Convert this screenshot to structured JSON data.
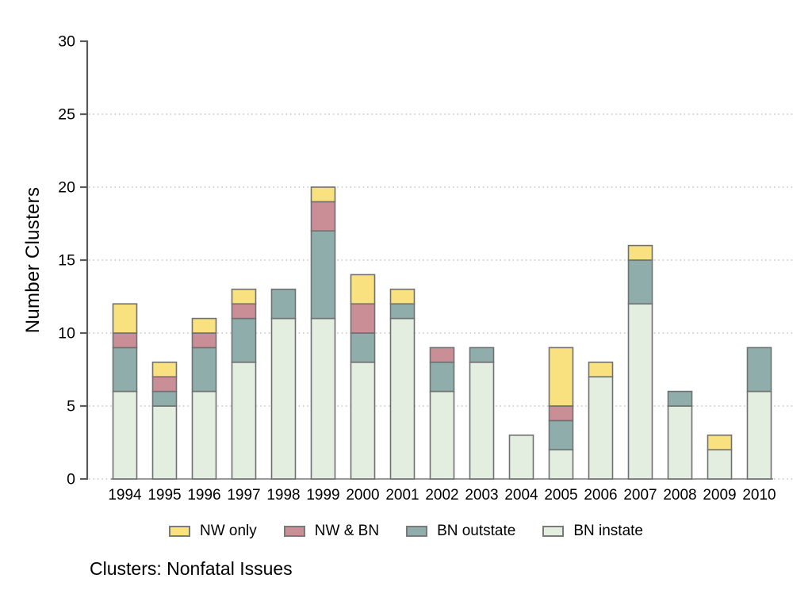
{
  "chart_data": {
    "type": "bar",
    "stacked": true,
    "title": "Clusters: Nonfatal Issues",
    "ylabel": "Number Clusters",
    "xlabel": "",
    "categories": [
      "1994",
      "1995",
      "1996",
      "1997",
      "1998",
      "1999",
      "2000",
      "2001",
      "2002",
      "2003",
      "2004",
      "2005",
      "2006",
      "2007",
      "2008",
      "2009",
      "2010"
    ],
    "series": [
      {
        "name": "NW only",
        "color": "#F8E17E",
        "values": [
          2,
          1,
          1,
          1,
          0,
          1,
          2,
          1,
          0,
          0,
          0,
          4,
          1,
          1,
          0,
          1,
          0
        ]
      },
      {
        "name": "NW & BN",
        "color": "#CA8E96",
        "values": [
          1,
          1,
          1,
          1,
          0,
          2,
          2,
          0,
          1,
          0,
          0,
          1,
          0,
          0,
          0,
          0,
          0
        ]
      },
      {
        "name": "BN outstate",
        "color": "#8FAEAB",
        "values": [
          3,
          1,
          3,
          3,
          2,
          6,
          2,
          1,
          2,
          1,
          0,
          2,
          0,
          3,
          1,
          0,
          3
        ]
      },
      {
        "name": "BN instate",
        "color": "#E3EEE1",
        "values": [
          6,
          5,
          6,
          8,
          11,
          11,
          8,
          11,
          6,
          8,
          3,
          2,
          7,
          12,
          5,
          2,
          6
        ]
      }
    ],
    "totals": [
      12,
      8,
      11,
      13,
      13,
      20,
      14,
      13,
      9,
      9,
      3,
      9,
      8,
      16,
      6,
      3,
      9
    ],
    "ylim": [
      0,
      30
    ],
    "yticks": [
      0,
      5,
      10,
      15,
      20,
      25,
      30
    ],
    "grid": "horizontal-dotted",
    "legend_position": "bottom",
    "colors": {
      "bar_border": "#6F7072",
      "axis": "#5A5A5A",
      "baseline": "#9A9A9A",
      "gridline": "#C6C6C6",
      "text": "#000000"
    }
  }
}
